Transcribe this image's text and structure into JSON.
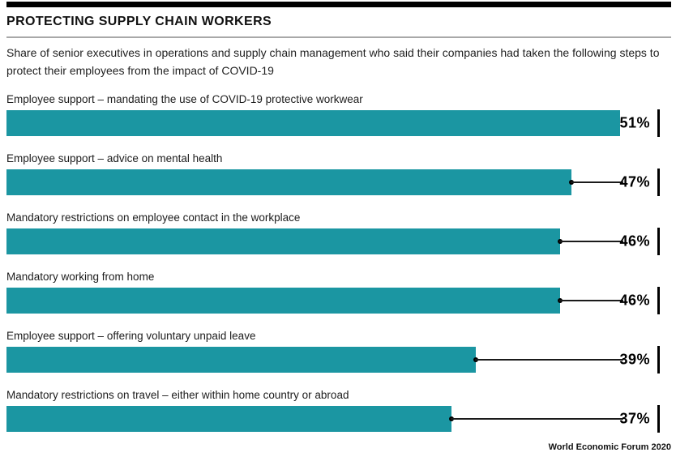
{
  "header": {
    "title": "PROTECTING SUPPLY CHAIN WORKERS",
    "subtitle": "Share of senior executives in operations and supply chain management who said their companies had taken the following steps to protect their employees from the impact of COVID-19"
  },
  "chart_data": {
    "type": "bar",
    "orientation": "horizontal",
    "title": "PROTECTING SUPPLY CHAIN WORKERS",
    "categories": [
      "Employee support – mandating the use of COVID-19 protective workwear",
      "Employee support – advice on mental health",
      "Mandatory restrictions on employee contact in the workplace",
      "Mandatory working from home",
      "Employee support – offering voluntary unpaid leave",
      "Mandatory restrictions on travel – either within home country or abroad"
    ],
    "values": [
      51,
      47,
      46,
      46,
      39,
      37
    ],
    "value_labels": [
      "51%",
      "47%",
      "46%",
      "46%",
      "39%",
      "37%"
    ],
    "unit": "%",
    "xlim": [
      0,
      54
    ],
    "grid": false,
    "legend": null,
    "bar_color": "#1b96a2"
  },
  "footer": {
    "source": "World Economic Forum 2020"
  },
  "colors": {
    "bar": "#1b96a2",
    "top_rule": "#000000",
    "divider": "#a8a8a8",
    "text": "#1a1a1a"
  }
}
